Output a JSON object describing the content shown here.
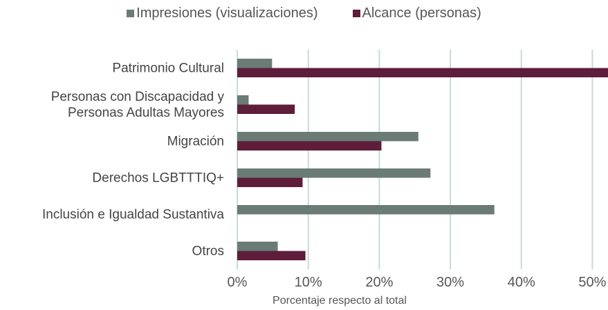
{
  "chart_data": {
    "type": "barh",
    "x_label": "Porcentaje respecto al total",
    "categories": [
      "Patrimonio Cultural",
      "Personas con Discapacidad y\nPersonas Adultas Mayores",
      "Migración",
      "Derechos LGBTTTIQ+",
      "Inclusión e Igualdad Sustantiva",
      "Otros"
    ],
    "series": [
      {
        "name": "Impresiones (visualizaciones)",
        "color": "#6b7b76",
        "values": [
          4.9,
          1.6,
          25.5,
          27.2,
          36.2,
          5.7
        ]
      },
      {
        "name": "Alcance (personas)",
        "color": "#5e1d3a",
        "values": [
          52.2,
          8.1,
          20.3,
          9.2,
          0,
          9.6
        ]
      }
    ],
    "xlim": [
      0,
      52.2
    ],
    "xticks": [
      {
        "value": 0,
        "label": "0%"
      },
      {
        "value": 10,
        "label": "10%"
      },
      {
        "value": 20,
        "label": "20%"
      },
      {
        "value": 30,
        "label": "30%"
      },
      {
        "value": 40,
        "label": "40%"
      },
      {
        "value": 50,
        "label": "50%"
      }
    ],
    "grid": true,
    "legend": "top"
  }
}
